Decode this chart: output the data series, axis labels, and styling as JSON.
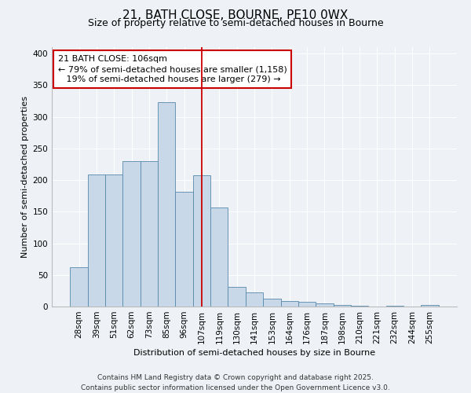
{
  "title": "21, BATH CLOSE, BOURNE, PE10 0WX",
  "subtitle": "Size of property relative to semi-detached houses in Bourne",
  "xlabel": "Distribution of semi-detached houses by size in Bourne",
  "ylabel": "Number of semi-detached properties",
  "bin_labels": [
    "28sqm",
    "39sqm",
    "51sqm",
    "62sqm",
    "73sqm",
    "85sqm",
    "96sqm",
    "107sqm",
    "119sqm",
    "130sqm",
    "141sqm",
    "153sqm",
    "164sqm",
    "176sqm",
    "187sqm",
    "198sqm",
    "210sqm",
    "221sqm",
    "232sqm",
    "244sqm",
    "255sqm"
  ],
  "bar_values": [
    62,
    209,
    209,
    230,
    230,
    323,
    181,
    207,
    157,
    31,
    22,
    13,
    9,
    8,
    5,
    3,
    1,
    0,
    1,
    0,
    2
  ],
  "bar_color": "#c8d8e8",
  "bar_edge_color": "#5588aa",
  "property_line_x": 7,
  "property_line_color": "#cc0000",
  "annotation_line1": "21 BATH CLOSE: 106sqm",
  "annotation_line2": "← 79% of semi-detached houses are smaller (1,158)",
  "annotation_line3": "   19% of semi-detached houses are larger (279) →",
  "annotation_box_color": "#ffffff",
  "annotation_box_edge": "#cc0000",
  "ylim": [
    0,
    410
  ],
  "yticks": [
    0,
    50,
    100,
    150,
    200,
    250,
    300,
    350,
    400
  ],
  "footer_line1": "Contains HM Land Registry data © Crown copyright and database right 2025.",
  "footer_line2": "Contains public sector information licensed under the Open Government Licence v3.0.",
  "bg_color": "#eef2f6",
  "grid_color": "#ffffff",
  "title_fontsize": 11,
  "subtitle_fontsize": 9,
  "axis_label_fontsize": 8,
  "tick_fontsize": 7.5,
  "annotation_fontsize": 8,
  "footer_fontsize": 6.5
}
